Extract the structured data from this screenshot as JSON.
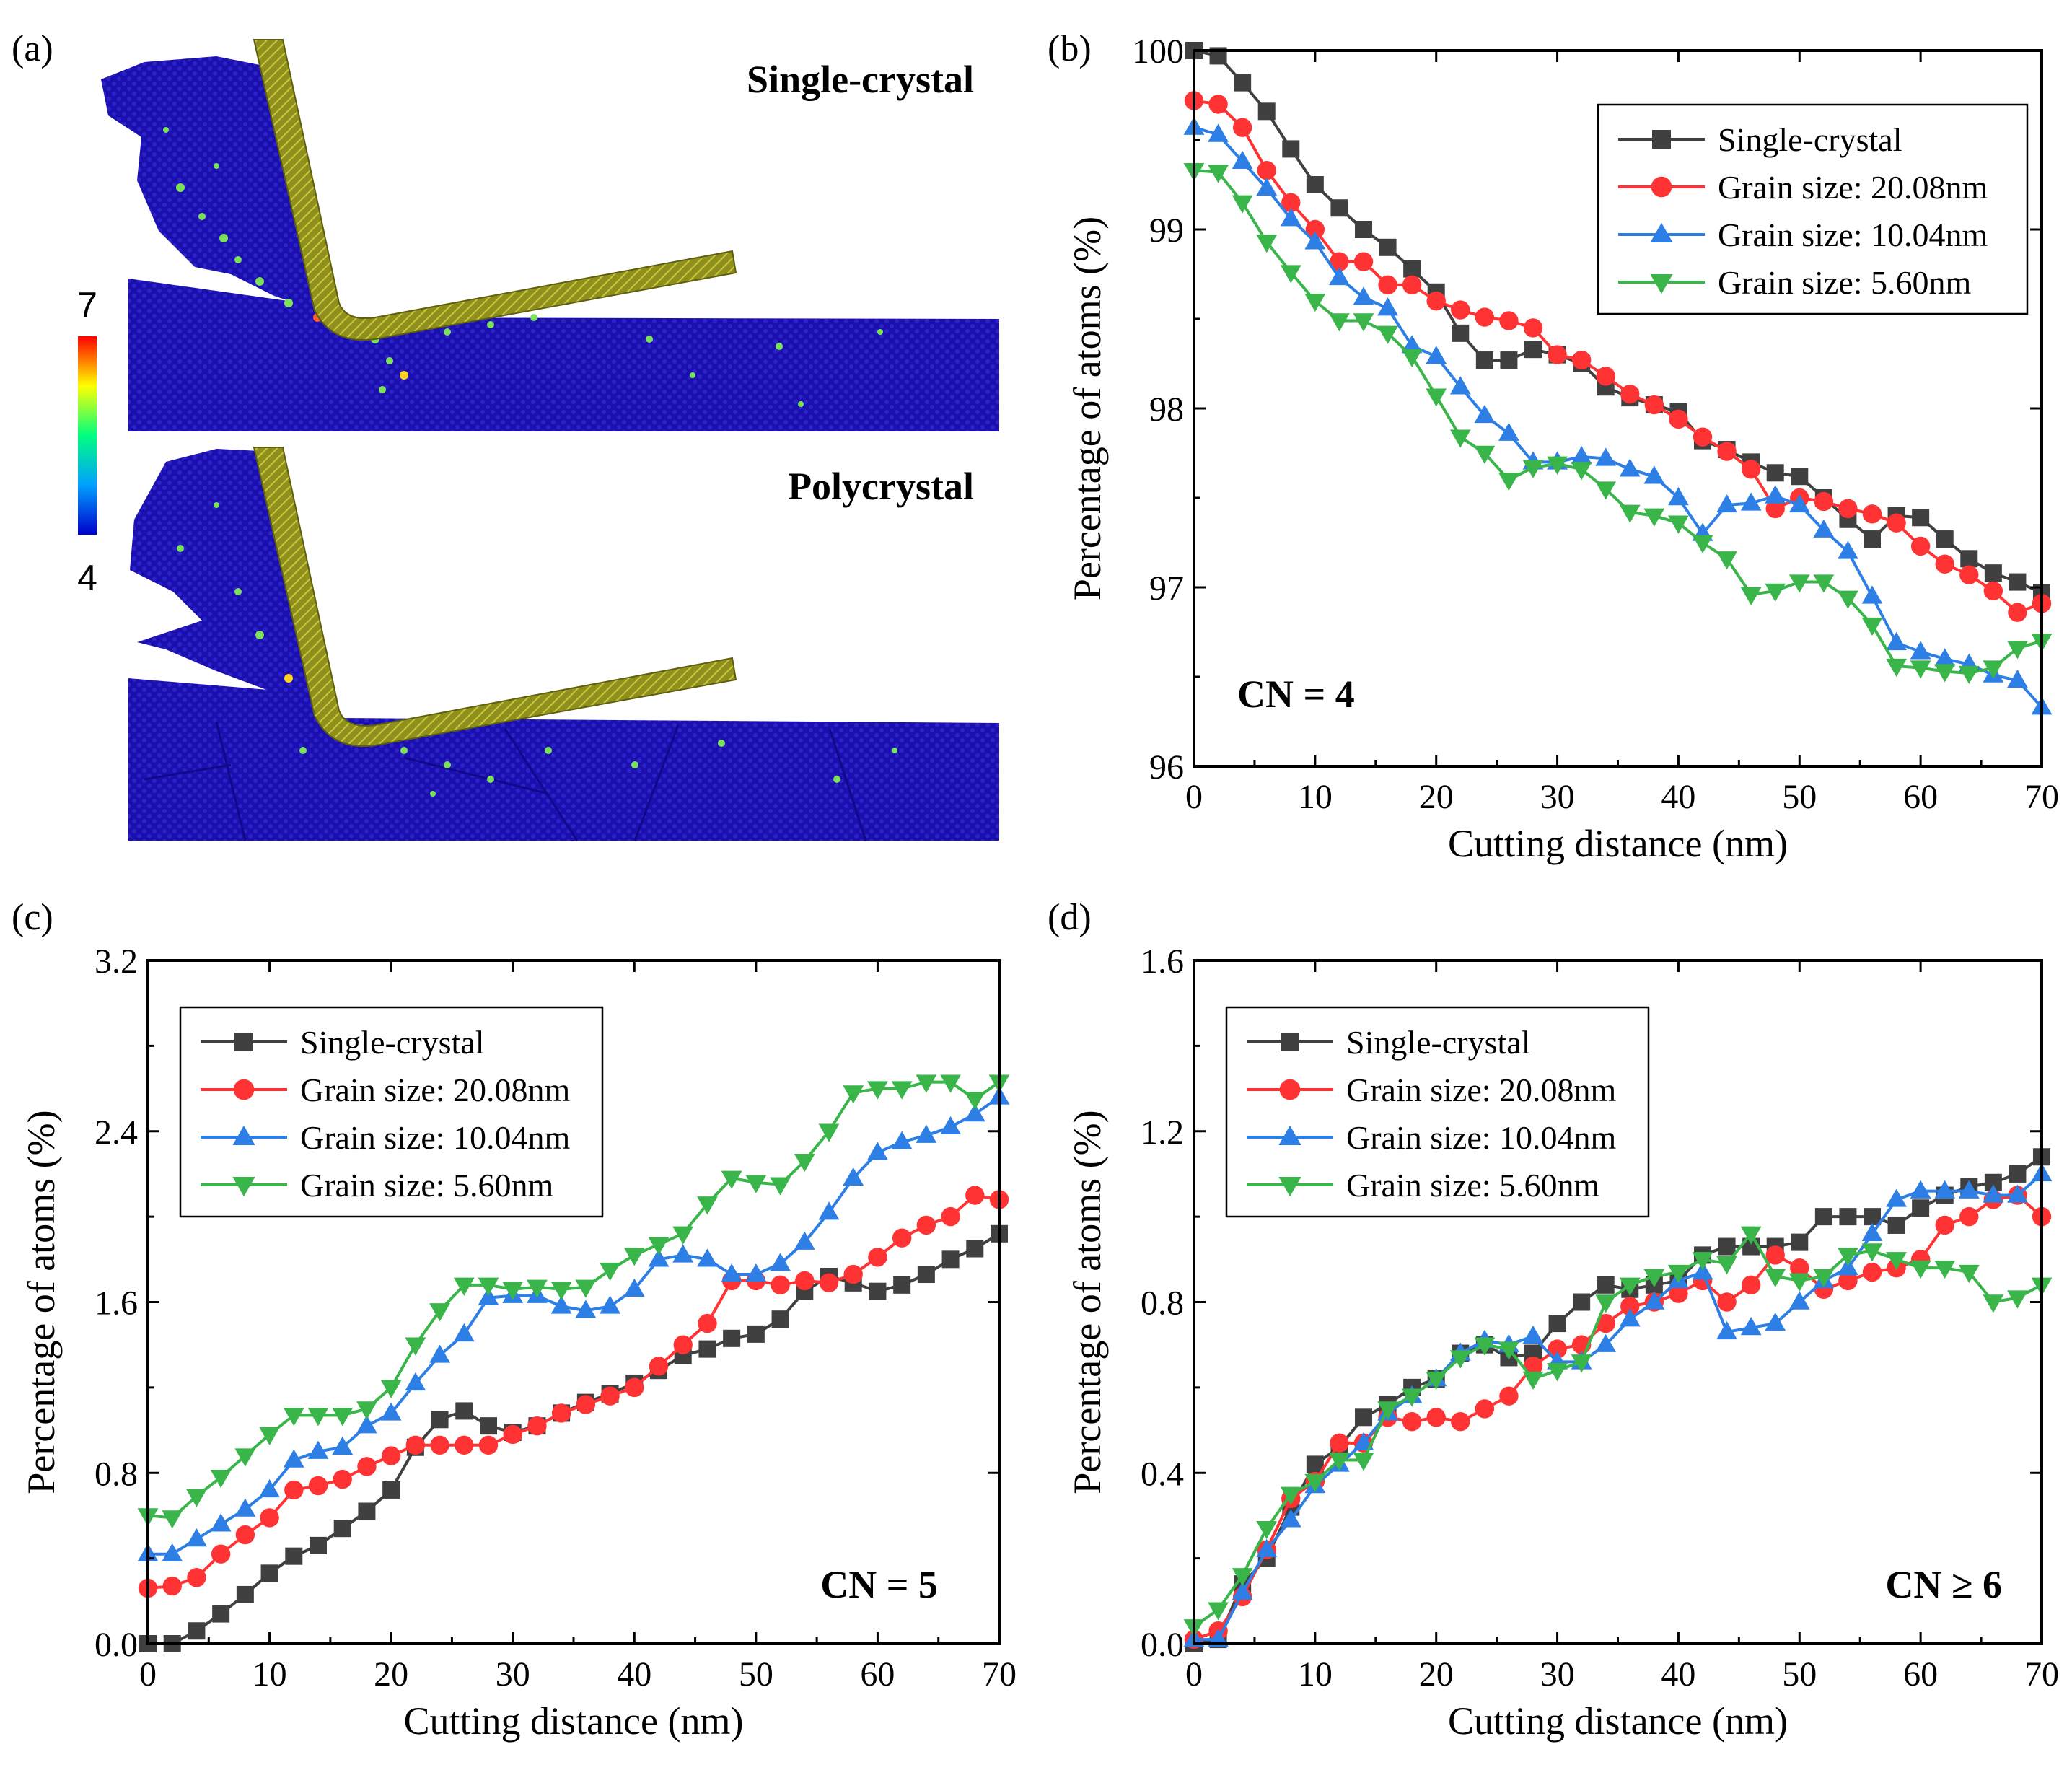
{
  "panel_a": {
    "label": "(a)",
    "titles": [
      "Single-crystal",
      "Polycrystal"
    ],
    "colorbar": {
      "max_label": "7",
      "min_label": "4",
      "colors": [
        "#0000cc",
        "#00a0ff",
        "#00ff80",
        "#ffff00",
        "#ff0000"
      ]
    }
  },
  "legend": [
    {
      "name": "Single-crystal",
      "color": "#404040",
      "marker": "square"
    },
    {
      "name": "Grain size: 20.08nm",
      "color": "#ff3333",
      "marker": "circle"
    },
    {
      "name": "Grain size: 10.04nm",
      "color": "#2d7fe6",
      "marker": "triangle-up"
    },
    {
      "name": "Grain size: 5.60nm",
      "color": "#39b54a",
      "marker": "triangle-down"
    }
  ],
  "chart_data": [
    {
      "id": "b",
      "panel_label": "(b)",
      "type": "line",
      "xlabel": "Cutting distance (nm)",
      "ylabel": "Percentage of atoms (%)",
      "xlim": [
        0,
        70
      ],
      "ylim": [
        96,
        100
      ],
      "xticks": [
        0,
        10,
        20,
        30,
        40,
        50,
        60,
        70
      ],
      "yticks": [
        96,
        97,
        98,
        99,
        100
      ],
      "ytick_decimals": 0,
      "annotation": "CN = 4",
      "legend_position": "top-right",
      "x": [
        0,
        2,
        4,
        6,
        8,
        10,
        12,
        14,
        16,
        18,
        20,
        22,
        24,
        26,
        28,
        30,
        32,
        34,
        36,
        38,
        40,
        42,
        44,
        46,
        48,
        50,
        52,
        54,
        56,
        58,
        60,
        62,
        64,
        66,
        68,
        70
      ],
      "series": [
        {
          "name": "Single-crystal",
          "values": [
            100.0,
            99.97,
            99.82,
            99.66,
            99.45,
            99.25,
            99.12,
            99.0,
            98.9,
            98.78,
            98.65,
            98.42,
            98.27,
            98.27,
            98.33,
            98.3,
            98.25,
            98.12,
            98.06,
            98.02,
            97.98,
            97.82,
            97.77,
            97.7,
            97.64,
            97.62,
            97.5,
            97.38,
            97.27,
            97.4,
            97.39,
            97.27,
            97.16,
            97.08,
            97.03,
            96.97
          ]
        },
        {
          "name": "Grain size: 20.08nm",
          "values": [
            99.72,
            99.7,
            99.57,
            99.33,
            99.15,
            99.0,
            98.82,
            98.82,
            98.69,
            98.69,
            98.6,
            98.55,
            98.51,
            98.49,
            98.45,
            98.3,
            98.27,
            98.18,
            98.08,
            98.02,
            97.94,
            97.84,
            97.76,
            97.66,
            97.44,
            97.5,
            97.48,
            97.44,
            97.41,
            97.36,
            97.23,
            97.13,
            97.07,
            96.98,
            96.86,
            96.91
          ]
        },
        {
          "name": "Grain size: 10.04nm",
          "values": [
            99.57,
            99.53,
            99.38,
            99.23,
            99.06,
            98.93,
            98.73,
            98.62,
            98.56,
            98.35,
            98.29,
            98.12,
            97.96,
            97.86,
            97.7,
            97.7,
            97.73,
            97.72,
            97.66,
            97.62,
            97.5,
            97.3,
            97.46,
            97.47,
            97.51,
            97.46,
            97.32,
            97.2,
            96.95,
            96.69,
            96.64,
            96.6,
            96.57,
            96.51,
            96.48,
            96.33
          ]
        },
        {
          "name": "Grain size: 5.60nm",
          "values": [
            99.33,
            99.32,
            99.15,
            98.93,
            98.76,
            98.6,
            98.49,
            98.49,
            98.42,
            98.29,
            98.07,
            97.84,
            97.75,
            97.6,
            97.67,
            97.69,
            97.66,
            97.55,
            97.42,
            97.4,
            97.36,
            97.25,
            97.16,
            96.96,
            96.98,
            97.03,
            97.03,
            96.94,
            96.79,
            96.56,
            96.55,
            96.53,
            96.52,
            96.55,
            96.66,
            96.7
          ]
        }
      ]
    },
    {
      "id": "c",
      "panel_label": "(c)",
      "type": "line",
      "xlabel": "Cutting distance (nm)",
      "ylabel": "Percentage of atoms (%)",
      "xlim": [
        0,
        70
      ],
      "ylim": [
        0,
        3.2
      ],
      "xticks": [
        0,
        10,
        20,
        30,
        40,
        50,
        60,
        70
      ],
      "yticks": [
        0.0,
        0.8,
        1.6,
        2.4,
        3.2
      ],
      "ytick_decimals": 1,
      "annotation": "CN = 5",
      "legend_position": "top-left",
      "x": [
        0,
        2,
        4,
        6,
        8,
        10,
        12,
        14,
        16,
        18,
        20,
        22,
        24,
        26,
        28,
        30,
        32,
        34,
        36,
        38,
        40,
        42,
        44,
        46,
        48,
        50,
        52,
        54,
        56,
        58,
        60,
        62,
        64,
        66,
        68,
        70
      ],
      "series": [
        {
          "name": "Single-crystal",
          "values": [
            0.0,
            0.0,
            0.06,
            0.14,
            0.23,
            0.33,
            0.41,
            0.46,
            0.54,
            0.62,
            0.72,
            0.92,
            1.05,
            1.09,
            1.02,
            0.99,
            1.02,
            1.08,
            1.13,
            1.17,
            1.22,
            1.28,
            1.35,
            1.38,
            1.43,
            1.45,
            1.52,
            1.65,
            1.72,
            1.69,
            1.65,
            1.68,
            1.73,
            1.8,
            1.85,
            1.92
          ]
        },
        {
          "name": "Grain size: 20.08nm",
          "values": [
            0.26,
            0.27,
            0.31,
            0.42,
            0.51,
            0.59,
            0.72,
            0.74,
            0.77,
            0.83,
            0.88,
            0.93,
            0.93,
            0.93,
            0.93,
            0.98,
            1.02,
            1.08,
            1.12,
            1.16,
            1.2,
            1.3,
            1.4,
            1.5,
            1.7,
            1.7,
            1.68,
            1.7,
            1.69,
            1.73,
            1.81,
            1.9,
            1.96,
            2.0,
            2.1,
            2.08
          ]
        },
        {
          "name": "Grain size: 10.04nm",
          "values": [
            0.42,
            0.42,
            0.49,
            0.56,
            0.63,
            0.72,
            0.86,
            0.9,
            0.92,
            1.02,
            1.08,
            1.22,
            1.35,
            1.45,
            1.62,
            1.63,
            1.63,
            1.58,
            1.56,
            1.58,
            1.66,
            1.8,
            1.82,
            1.8,
            1.73,
            1.73,
            1.78,
            1.88,
            2.02,
            2.18,
            2.3,
            2.35,
            2.38,
            2.42,
            2.48,
            2.56
          ]
        },
        {
          "name": "Grain size: 5.60nm",
          "values": [
            0.6,
            0.59,
            0.69,
            0.78,
            0.88,
            0.98,
            1.07,
            1.07,
            1.07,
            1.1,
            1.2,
            1.4,
            1.56,
            1.68,
            1.68,
            1.66,
            1.67,
            1.66,
            1.67,
            1.75,
            1.82,
            1.87,
            1.92,
            2.06,
            2.18,
            2.16,
            2.15,
            2.26,
            2.4,
            2.58,
            2.6,
            2.6,
            2.63,
            2.63,
            2.55,
            2.63
          ]
        }
      ]
    },
    {
      "id": "d",
      "panel_label": "(d)",
      "type": "line",
      "xlabel": "Cutting distance (nm)",
      "ylabel": "Percentage of atoms (%)",
      "xlim": [
        0,
        70
      ],
      "ylim": [
        0,
        1.6
      ],
      "xticks": [
        0,
        10,
        20,
        30,
        40,
        50,
        60,
        70
      ],
      "yticks": [
        0.0,
        0.4,
        0.8,
        1.2,
        1.6
      ],
      "ytick_decimals": 1,
      "annotation": "CN ≥ 6",
      "legend_position": "top-left",
      "x": [
        0,
        2,
        4,
        6,
        8,
        10,
        12,
        14,
        16,
        18,
        20,
        22,
        24,
        26,
        28,
        30,
        32,
        34,
        36,
        38,
        40,
        42,
        44,
        46,
        48,
        50,
        52,
        54,
        56,
        58,
        60,
        62,
        64,
        66,
        68,
        70
      ],
      "series": [
        {
          "name": "Single-crystal",
          "values": [
            0.0,
            0.01,
            0.14,
            0.2,
            0.32,
            0.42,
            0.46,
            0.53,
            0.56,
            0.6,
            0.62,
            0.68,
            0.7,
            0.67,
            0.68,
            0.75,
            0.8,
            0.84,
            0.83,
            0.84,
            0.85,
            0.91,
            0.93,
            0.93,
            0.93,
            0.94,
            1.0,
            1.0,
            1.0,
            0.98,
            1.02,
            1.05,
            1.07,
            1.08,
            1.1,
            1.14
          ]
        },
        {
          "name": "Grain size: 20.08nm",
          "values": [
            0.01,
            0.03,
            0.11,
            0.22,
            0.34,
            0.38,
            0.47,
            0.47,
            0.53,
            0.52,
            0.53,
            0.52,
            0.55,
            0.58,
            0.65,
            0.69,
            0.7,
            0.75,
            0.79,
            0.8,
            0.82,
            0.85,
            0.8,
            0.84,
            0.91,
            0.88,
            0.83,
            0.85,
            0.87,
            0.88,
            0.9,
            0.98,
            1.0,
            1.04,
            1.05,
            1.0
          ]
        },
        {
          "name": "Grain size: 10.04nm",
          "values": [
            0.01,
            0.01,
            0.12,
            0.22,
            0.29,
            0.37,
            0.42,
            0.47,
            0.54,
            0.58,
            0.62,
            0.68,
            0.71,
            0.7,
            0.72,
            0.66,
            0.66,
            0.7,
            0.76,
            0.8,
            0.85,
            0.87,
            0.73,
            0.74,
            0.75,
            0.8,
            0.85,
            0.88,
            0.96,
            1.04,
            1.06,
            1.06,
            1.06,
            1.05,
            1.05,
            1.1
          ]
        },
        {
          "name": "Grain size: 5.60nm",
          "values": [
            0.04,
            0.08,
            0.16,
            0.27,
            0.35,
            0.38,
            0.43,
            0.43,
            0.55,
            0.58,
            0.62,
            0.67,
            0.7,
            0.69,
            0.62,
            0.64,
            0.66,
            0.8,
            0.84,
            0.86,
            0.87,
            0.9,
            0.89,
            0.96,
            0.86,
            0.85,
            0.86,
            0.91,
            0.92,
            0.9,
            0.88,
            0.88,
            0.87,
            0.8,
            0.81,
            0.84
          ]
        }
      ]
    }
  ]
}
